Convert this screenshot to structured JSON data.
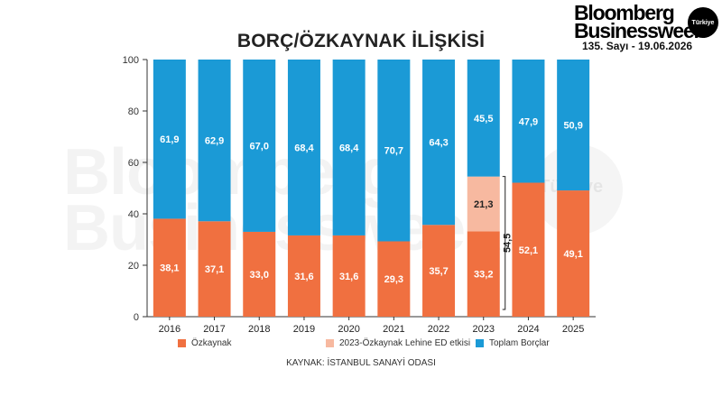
{
  "header": {
    "brand_line1": "Bloomberg",
    "brand_line2": "Businessweek",
    "brand_badge": "Türkiye",
    "issue": "135. Sayı - 19.06.2026"
  },
  "watermark": {
    "line1": "Bloomberg",
    "line2": "Businessweek",
    "badge": "Türkiye"
  },
  "colors": {
    "equity": "#f07040",
    "equity_effect": "#f7b9a0",
    "debt": "#1b9ad6"
  },
  "chart_data": {
    "type": "bar",
    "stacked": true,
    "title": "BORÇ/ÖZKAYNAK İLİŞKİSİ",
    "categories": [
      "2016",
      "2017",
      "2018",
      "2019",
      "2020",
      "2021",
      "2022",
      "2023",
      "2024",
      "2025"
    ],
    "series": [
      {
        "name": "Özkaynak",
        "values": [
          38.1,
          37.1,
          33.0,
          31.6,
          31.6,
          29.3,
          35.7,
          33.2,
          52.1,
          49.1
        ]
      },
      {
        "name": "2023-Özkaynak Lehine ED etkisi",
        "values": [
          null,
          null,
          null,
          null,
          null,
          null,
          null,
          21.3,
          null,
          null
        ]
      },
      {
        "name": "Toplam Borçlar",
        "values": [
          61.9,
          62.9,
          67.0,
          68.4,
          68.4,
          70.7,
          64.3,
          45.5,
          47.9,
          50.9
        ]
      }
    ],
    "data_labels": {
      "Özkaynak": [
        "38,1",
        "37,1",
        "33,0",
        "31,6",
        "31,6",
        "29,3",
        "35,7",
        "33,2",
        "52,1",
        "49,1"
      ],
      "2023-Özkaynak Lehine ED etkisi": [
        "",
        "",
        "",
        "",
        "",
        "",
        "",
        "21,3",
        "",
        ""
      ],
      "Toplam Borçlar": [
        "61,9",
        "62,9",
        "67,0",
        "68,4",
        "68,4",
        "70,7",
        "64,3",
        "45,5",
        "47,9",
        "50,9"
      ]
    },
    "bracket": {
      "category": "2023",
      "label": "54,5"
    },
    "y_ticks": [
      "0",
      "20",
      "40",
      "60",
      "80",
      "100"
    ],
    "ylim": [
      0,
      100
    ],
    "grid": false,
    "legend_position": "bottom",
    "source": "KAYNAK: İSTANBUL SANAYİ ODASI"
  }
}
